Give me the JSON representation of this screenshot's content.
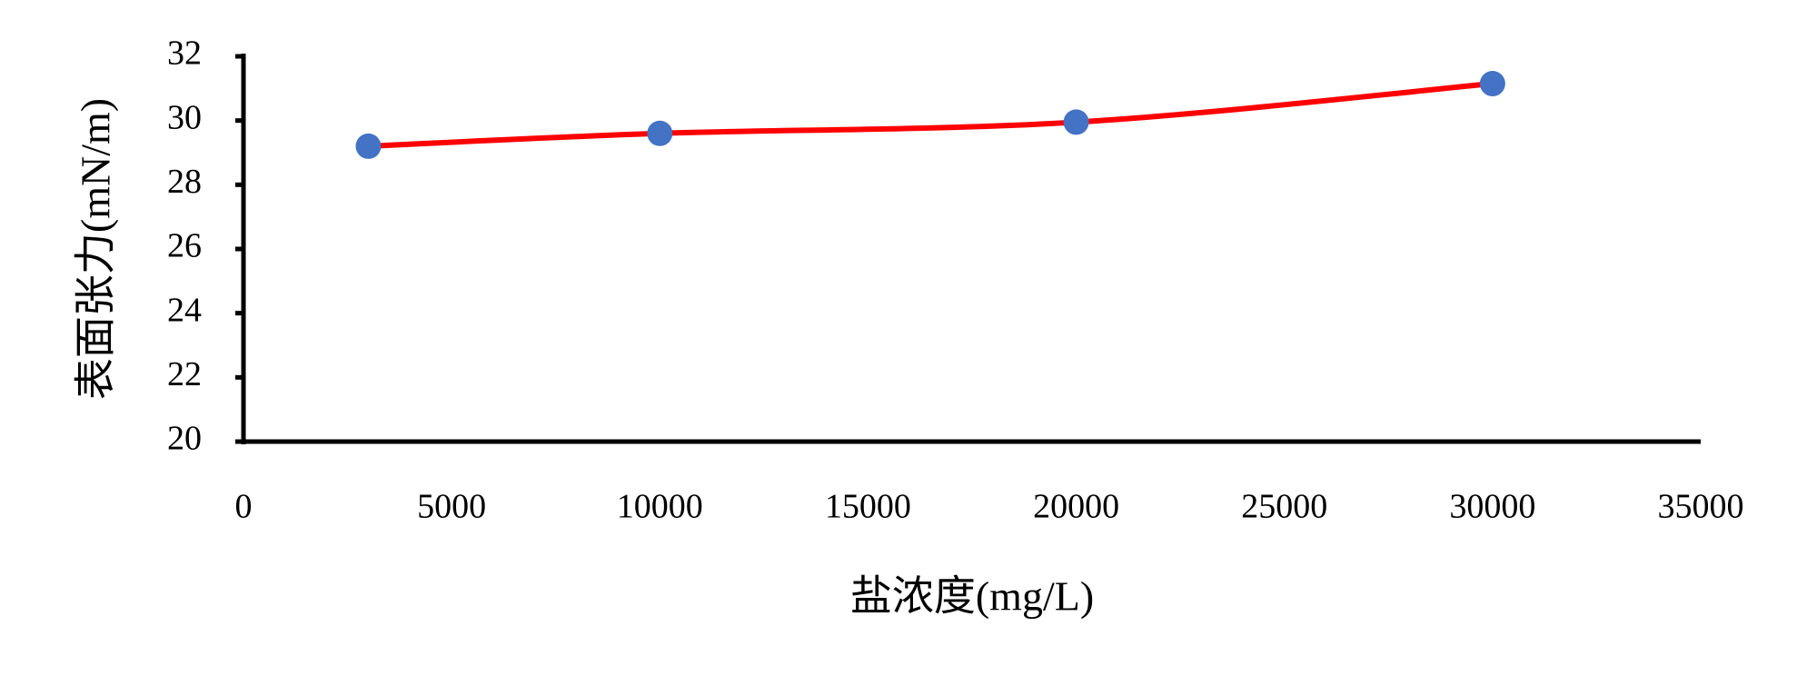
{
  "chart_data": {
    "type": "line",
    "x_label": "盐浓度(mg/L)",
    "y_label": "表面张力(mN/m)",
    "x": [
      3000,
      10000,
      20000,
      30000
    ],
    "series": [
      {
        "color": "#ff0000",
        "marker_color": "#4472c4",
        "values": [
          29.2,
          29.6,
          29.95,
          31.15
        ]
      }
    ],
    "xlim": [
      0,
      35000
    ],
    "xticks": [
      0,
      5000,
      10000,
      15000,
      20000,
      25000,
      30000,
      35000
    ],
    "ylim": [
      20,
      32
    ],
    "yticks": [
      20,
      22,
      24,
      26,
      28,
      30,
      32
    ],
    "smooth": true,
    "grid": false
  }
}
